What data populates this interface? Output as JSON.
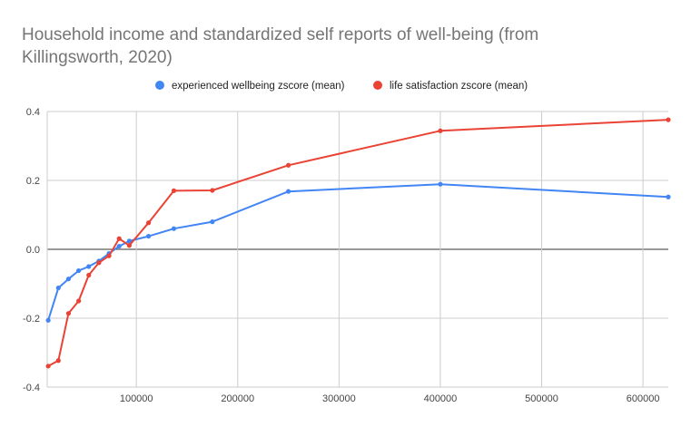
{
  "chart_data": {
    "type": "line",
    "title_lines": [
      "Household income and standardized self reports of well-being (from",
      "Killingsworth, 2020)"
    ],
    "xlabel": "",
    "ylabel": "",
    "xlim": [
      12000,
      625000
    ],
    "ylim": [
      -0.4,
      0.4
    ],
    "x_ticks": [
      100000,
      200000,
      300000,
      400000,
      500000,
      600000
    ],
    "x_tick_labels": [
      "100000",
      "200000",
      "300000",
      "400000",
      "500000",
      "600000"
    ],
    "y_ticks": [
      -0.4,
      -0.2,
      0,
      0.2,
      0.4
    ],
    "y_tick_labels": [
      "-0.4",
      "-0.2",
      "0.0",
      "0.2",
      "0.4"
    ],
    "grid": true,
    "legend_position": "top",
    "x": [
      13000,
      23000,
      33000,
      43000,
      53000,
      63000,
      73000,
      83000,
      93000,
      112000,
      137000,
      175000,
      250000,
      400000,
      625000
    ],
    "series": [
      {
        "name": "experienced wellbeing zscore (mean)",
        "color": "#4285f4",
        "values": [
          -0.206,
          -0.112,
          -0.086,
          -0.062,
          -0.05,
          -0.034,
          -0.012,
          0.009,
          0.024,
          0.038,
          0.06,
          0.08,
          0.168,
          0.189,
          0.152
        ]
      },
      {
        "name": "life satisfaction zscore (mean)",
        "color": "#ea4335",
        "values": [
          -0.339,
          -0.323,
          -0.186,
          -0.15,
          -0.075,
          -0.039,
          -0.019,
          0.031,
          0.011,
          0.077,
          0.17,
          0.171,
          0.244,
          0.344,
          0.376
        ]
      }
    ]
  }
}
